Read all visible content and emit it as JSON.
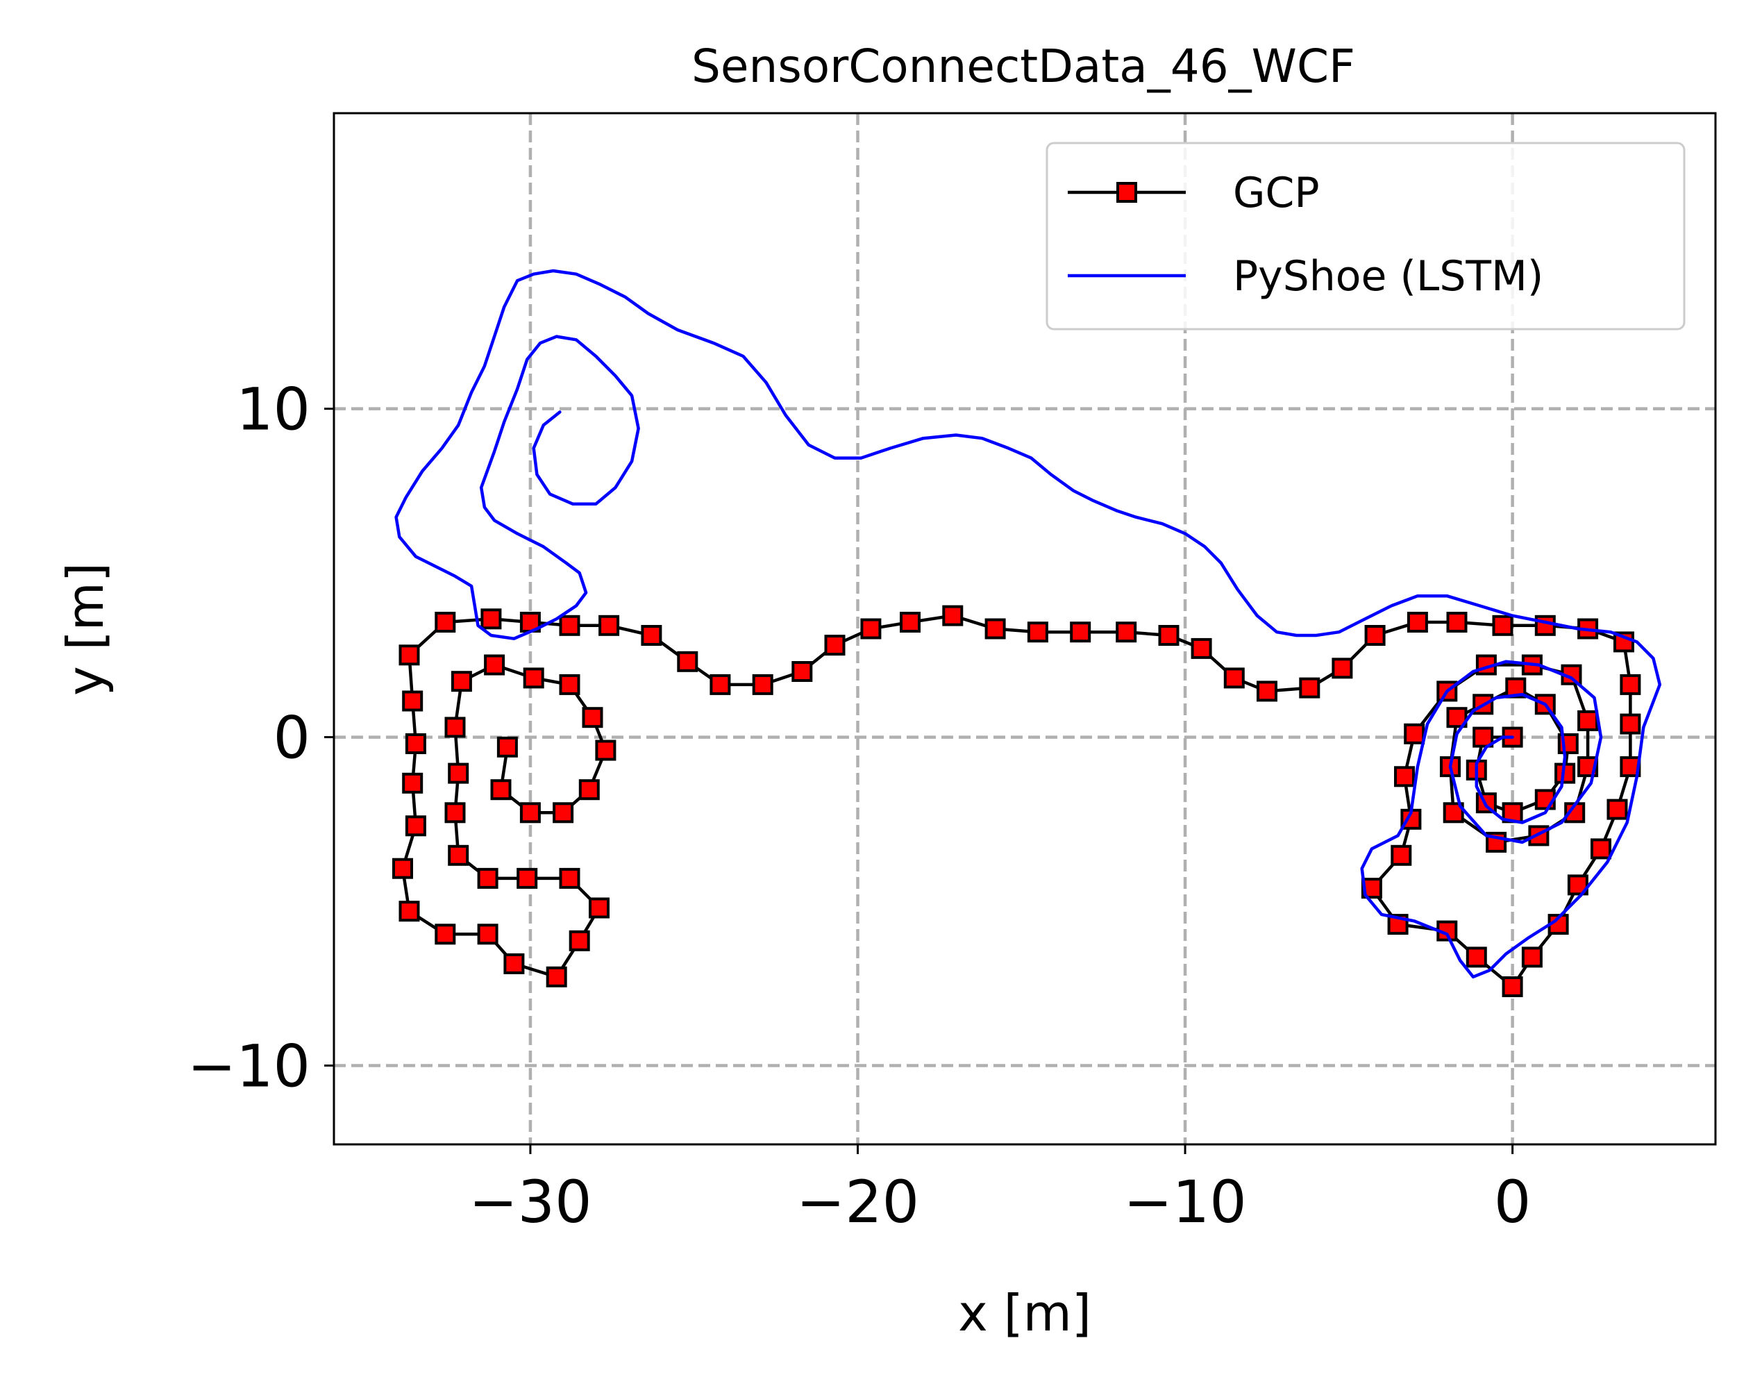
{
  "chart_data": {
    "type": "line",
    "title": "SensorConnectData_46_WCF",
    "xlabel": "x [m]",
    "ylabel": "y [m]",
    "xlim": [
      -36,
      6.2
    ],
    "ylim": [
      -12.4,
      19
    ],
    "grid": true,
    "legend_position": "top-right",
    "x_ticks": [
      -30,
      -20,
      -10,
      0
    ],
    "y_ticks": [
      -10,
      0,
      10
    ],
    "x_tick_labels": [
      "−30",
      "−20",
      "−10",
      "0"
    ],
    "y_tick_labels": [
      "−10",
      "0",
      "10"
    ],
    "series": [
      {
        "name": "GCP",
        "color": "#000000",
        "marker": "square",
        "marker_color": "#ff0000",
        "points": [
          [
            0,
            0
          ],
          [
            -0.9,
            0
          ],
          [
            -1.1,
            -1.0
          ],
          [
            -0.8,
            -2.0
          ],
          [
            0,
            -2.3
          ],
          [
            1.0,
            -1.9
          ],
          [
            1.6,
            -1.1
          ],
          [
            1.7,
            -0.2
          ],
          [
            1.0,
            1.0
          ],
          [
            0.1,
            1.5
          ],
          [
            -0.9,
            1.0
          ],
          [
            -1.7,
            0.6
          ],
          [
            -1.9,
            -0.9
          ],
          [
            -1.8,
            -2.3
          ],
          [
            -0.5,
            -3.2
          ],
          [
            0.8,
            -3.0
          ],
          [
            1.9,
            -2.3
          ],
          [
            2.3,
            -0.9
          ],
          [
            2.3,
            0.5
          ],
          [
            1.8,
            1.9
          ],
          [
            0.6,
            2.2
          ],
          [
            -0.8,
            2.2
          ],
          [
            -2.0,
            1.4
          ],
          [
            -3.0,
            0.1
          ],
          [
            -3.3,
            -1.2
          ],
          [
            -3.1,
            -2.5
          ],
          [
            -3.4,
            -3.6
          ],
          [
            -4.3,
            -4.6
          ],
          [
            -3.5,
            -5.7
          ],
          [
            -2.0,
            -5.9
          ],
          [
            -1.1,
            -6.7
          ],
          [
            0,
            -7.6
          ],
          [
            0.6,
            -6.7
          ],
          [
            1.4,
            -5.7
          ],
          [
            2.0,
            -4.5
          ],
          [
            2.7,
            -3.4
          ],
          [
            3.2,
            -2.2
          ],
          [
            3.6,
            -0.9
          ],
          [
            3.6,
            0.4
          ],
          [
            3.6,
            1.6
          ],
          [
            3.4,
            2.9
          ],
          [
            2.3,
            3.3
          ],
          [
            1.0,
            3.4
          ],
          [
            -0.3,
            3.4
          ],
          [
            -1.7,
            3.5
          ],
          [
            -2.9,
            3.5
          ],
          [
            -4.2,
            3.1
          ],
          [
            -5.2,
            2.1
          ],
          [
            -6.2,
            1.5
          ],
          [
            -7.5,
            1.4
          ],
          [
            -8.5,
            1.8
          ],
          [
            -9.5,
            2.7
          ],
          [
            -10.5,
            3.1
          ],
          [
            -11.8,
            3.2
          ],
          [
            -13.2,
            3.2
          ],
          [
            -14.5,
            3.2
          ],
          [
            -15.8,
            3.3
          ],
          [
            -17.1,
            3.7
          ],
          [
            -18.4,
            3.5
          ],
          [
            -19.6,
            3.3
          ],
          [
            -20.7,
            2.8
          ],
          [
            -21.7,
            2.0
          ],
          [
            -22.9,
            1.6
          ],
          [
            -24.2,
            1.6
          ],
          [
            -25.2,
            2.3
          ],
          [
            -26.3,
            3.1
          ],
          [
            -27.6,
            3.4
          ],
          [
            -28.8,
            3.4
          ],
          [
            -30.0,
            3.5
          ],
          [
            -31.2,
            3.6
          ],
          [
            -32.6,
            3.5
          ],
          [
            -33.7,
            2.5
          ],
          [
            -33.6,
            1.1
          ],
          [
            -33.5,
            -0.2
          ],
          [
            -33.6,
            -1.4
          ],
          [
            -33.5,
            -2.7
          ],
          [
            -33.9,
            -4.0
          ],
          [
            -33.7,
            -5.3
          ],
          [
            -32.6,
            -6.0
          ],
          [
            -31.3,
            -6.0
          ],
          [
            -30.5,
            -6.9
          ],
          [
            -29.2,
            -7.3
          ],
          [
            -28.5,
            -6.2
          ],
          [
            -27.9,
            -5.2
          ],
          [
            -28.8,
            -4.3
          ],
          [
            -30.1,
            -4.3
          ],
          [
            -31.3,
            -4.3
          ],
          [
            -32.2,
            -3.6
          ],
          [
            -32.3,
            -2.3
          ],
          [
            -32.2,
            -1.1
          ],
          [
            -32.3,
            0.3
          ],
          [
            -32.1,
            1.7
          ],
          [
            -31.1,
            2.2
          ],
          [
            -29.9,
            1.8
          ],
          [
            -28.8,
            1.6
          ],
          [
            -28.1,
            0.6
          ],
          [
            -27.7,
            -0.4
          ],
          [
            -28.2,
            -1.6
          ],
          [
            -29.0,
            -2.3
          ],
          [
            -30.0,
            -2.3
          ],
          [
            -30.9,
            -1.6
          ],
          [
            -30.7,
            -0.3
          ]
        ]
      },
      {
        "name": "PyShoe (LSTM)",
        "color": "#0000ff",
        "marker": "none",
        "points": [
          [
            0,
            0
          ],
          [
            -0.3,
            0
          ],
          [
            -0.8,
            -0.3
          ],
          [
            -1.1,
            -0.8
          ],
          [
            -1.1,
            -1.5
          ],
          [
            -0.8,
            -2.1
          ],
          [
            -0.3,
            -2.5
          ],
          [
            0.3,
            -2.6
          ],
          [
            1.0,
            -2.3
          ],
          [
            1.5,
            -1.5
          ],
          [
            1.6,
            -0.6
          ],
          [
            1.5,
            0.3
          ],
          [
            1.0,
            1.0
          ],
          [
            0.3,
            1.3
          ],
          [
            -0.5,
            1.2
          ],
          [
            -1.2,
            0.8
          ],
          [
            -1.7,
            0.1
          ],
          [
            -1.9,
            -0.9
          ],
          [
            -1.6,
            -2.1
          ],
          [
            -0.8,
            -3.0
          ],
          [
            0.3,
            -3.2
          ],
          [
            1.5,
            -2.6
          ],
          [
            2.4,
            -1.4
          ],
          [
            2.7,
            0
          ],
          [
            2.5,
            1.2
          ],
          [
            1.8,
            1.8
          ],
          [
            0.8,
            2.2
          ],
          [
            -0.2,
            2.3
          ],
          [
            -1.2,
            2.0
          ],
          [
            -2.0,
            1.4
          ],
          [
            -2.6,
            0.4
          ],
          [
            -2.9,
            -0.9
          ],
          [
            -3.1,
            -2.3
          ],
          [
            -3.5,
            -3.0
          ],
          [
            -4.3,
            -3.4
          ],
          [
            -4.6,
            -4.0
          ],
          [
            -4.5,
            -4.8
          ],
          [
            -4.0,
            -5.4
          ],
          [
            -3.0,
            -5.6
          ],
          [
            -2.0,
            -6.0
          ],
          [
            -1.6,
            -6.8
          ],
          [
            -1.2,
            -7.3
          ],
          [
            -0.7,
            -7.1
          ],
          [
            -0.2,
            -6.6
          ],
          [
            0.5,
            -6.1
          ],
          [
            1.3,
            -5.6
          ],
          [
            2.1,
            -4.8
          ],
          [
            2.9,
            -3.8
          ],
          [
            3.5,
            -2.6
          ],
          [
            3.8,
            -1.2
          ],
          [
            4.0,
            0.3
          ],
          [
            4.5,
            1.6
          ],
          [
            4.3,
            2.4
          ],
          [
            3.8,
            2.9
          ],
          [
            3.0,
            3.2
          ],
          [
            2.0,
            3.3
          ],
          [
            1.0,
            3.5
          ],
          [
            0,
            3.7
          ],
          [
            -1.0,
            4.0
          ],
          [
            -2.0,
            4.3
          ],
          [
            -2.9,
            4.3
          ],
          [
            -3.7,
            4.0
          ],
          [
            -4.5,
            3.6
          ],
          [
            -5.3,
            3.2
          ],
          [
            -6.0,
            3.1
          ],
          [
            -6.6,
            3.1
          ],
          [
            -7.2,
            3.2
          ],
          [
            -7.8,
            3.7
          ],
          [
            -8.4,
            4.5
          ],
          [
            -8.9,
            5.3
          ],
          [
            -9.4,
            5.8
          ],
          [
            -10.0,
            6.2
          ],
          [
            -10.7,
            6.5
          ],
          [
            -11.5,
            6.7
          ],
          [
            -12.1,
            6.9
          ],
          [
            -12.8,
            7.2
          ],
          [
            -13.4,
            7.5
          ],
          [
            -14.1,
            8.0
          ],
          [
            -14.7,
            8.5
          ],
          [
            -15.4,
            8.8
          ],
          [
            -16.2,
            9.1
          ],
          [
            -17.0,
            9.2
          ],
          [
            -18.0,
            9.1
          ],
          [
            -19.0,
            8.8
          ],
          [
            -19.9,
            8.5
          ],
          [
            -20.7,
            8.5
          ],
          [
            -21.5,
            8.9
          ],
          [
            -22.2,
            9.8
          ],
          [
            -22.8,
            10.8
          ],
          [
            -23.5,
            11.6
          ],
          [
            -24.4,
            12.0
          ],
          [
            -25.5,
            12.4
          ],
          [
            -26.4,
            12.9
          ],
          [
            -27.1,
            13.4
          ],
          [
            -27.9,
            13.8
          ],
          [
            -28.6,
            14.1
          ],
          [
            -29.3,
            14.2
          ],
          [
            -29.9,
            14.1
          ],
          [
            -30.4,
            13.9
          ],
          [
            -30.8,
            13.1
          ],
          [
            -31.1,
            12.2
          ],
          [
            -31.4,
            11.3
          ],
          [
            -31.8,
            10.5
          ],
          [
            -32.2,
            9.5
          ],
          [
            -32.7,
            8.8
          ],
          [
            -33.3,
            8.1
          ],
          [
            -33.8,
            7.3
          ],
          [
            -34.1,
            6.7
          ],
          [
            -34.0,
            6.1
          ],
          [
            -33.5,
            5.5
          ],
          [
            -32.9,
            5.2
          ],
          [
            -32.3,
            4.9
          ],
          [
            -31.8,
            4.6
          ],
          [
            -31.7,
            4.0
          ],
          [
            -31.6,
            3.4
          ],
          [
            -31.2,
            3.1
          ],
          [
            -30.5,
            3.0
          ],
          [
            -29.8,
            3.3
          ],
          [
            -29.2,
            3.6
          ],
          [
            -28.6,
            4.0
          ],
          [
            -28.3,
            4.4
          ],
          [
            -28.5,
            5.0
          ],
          [
            -28.9,
            5.3
          ],
          [
            -29.6,
            5.8
          ],
          [
            -30.4,
            6.2
          ],
          [
            -31.1,
            6.6
          ],
          [
            -31.4,
            7.0
          ],
          [
            -31.5,
            7.6
          ],
          [
            -31.1,
            8.7
          ],
          [
            -30.8,
            9.6
          ],
          [
            -30.4,
            10.6
          ],
          [
            -30.1,
            11.5
          ],
          [
            -29.7,
            12.0
          ],
          [
            -29.2,
            12.2
          ],
          [
            -28.6,
            12.1
          ],
          [
            -28.0,
            11.6
          ],
          [
            -27.4,
            11.0
          ],
          [
            -26.9,
            10.4
          ],
          [
            -26.7,
            9.4
          ],
          [
            -26.9,
            8.4
          ],
          [
            -27.4,
            7.6
          ],
          [
            -28.0,
            7.1
          ],
          [
            -28.7,
            7.1
          ],
          [
            -29.4,
            7.4
          ],
          [
            -29.8,
            8.0
          ],
          [
            -29.9,
            8.8
          ],
          [
            -29.6,
            9.5
          ],
          [
            -29.1,
            9.9
          ]
        ]
      }
    ]
  }
}
